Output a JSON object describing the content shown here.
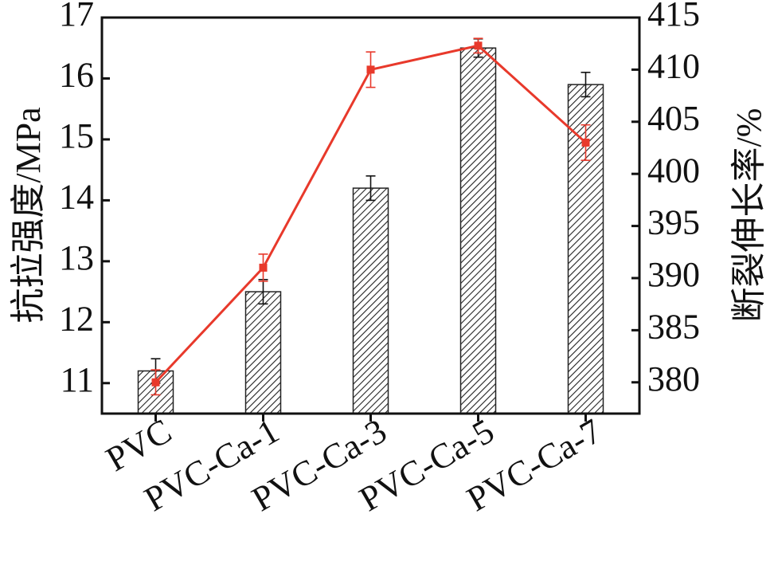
{
  "chart_data": {
    "type": "bar_line",
    "categories": [
      "PVC",
      "PVC-Ca-1",
      "PVC-Ca-3",
      "PVC-Ca-5",
      "PVC-Ca-7"
    ],
    "ylabel": "抗拉强度/MPa",
    "y2label": "断裂伸长率/%",
    "ylim": [
      10.5,
      17
    ],
    "yticks": [
      11,
      12,
      13,
      14,
      15,
      16,
      17
    ],
    "y2lim": [
      377,
      415
    ],
    "y2ticks": [
      380,
      385,
      390,
      395,
      400,
      405,
      410,
      415
    ],
    "grid": false,
    "series": [
      {
        "kind": "bar",
        "color": "#222222",
        "values": [
          11.2,
          12.5,
          14.2,
          16.5,
          15.9
        ],
        "errors": [
          0.2,
          0.2,
          0.2,
          0.15,
          0.2
        ]
      },
      {
        "kind": "line",
        "axis": "y2",
        "color": "#e8392b",
        "values": [
          380,
          391,
          410,
          412.3,
          403
        ],
        "errors": [
          1.2,
          1.3,
          1.7,
          0.7,
          1.7
        ]
      }
    ]
  }
}
